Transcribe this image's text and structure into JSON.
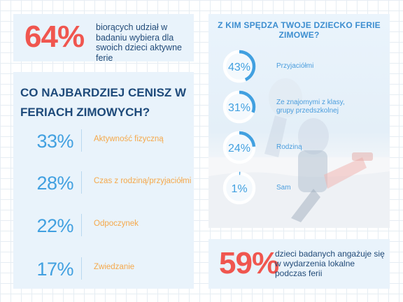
{
  "stat_top": {
    "value": "64%",
    "text": "biorących udział w badaniu wybiera dla swoich dzieci aktywne ferie"
  },
  "stat_bottom": {
    "value": "59%",
    "text": "dzieci badanych angażuje się w wydarzenia lokalne podczas ferii"
  },
  "colors": {
    "accent_red": "#f0564f",
    "accent_blue": "#41a0e0",
    "accent_orange": "#f5a84a",
    "navy": "#1e4a7a",
    "card": "#e9f3fb"
  },
  "chart_data": [
    {
      "type": "bar",
      "title": "CO NAJBARDZIEJ CENISZ W FERIACH ZIMOWYCH?",
      "categories": [
        "Aktywność fizyczną",
        "Czas z rodziną/przyjaciółmi",
        "Odpoczynek",
        "Zwiedzanie"
      ],
      "values": [
        33,
        28,
        22,
        17
      ],
      "value_labels": [
        "33%",
        "28%",
        "22%",
        "17%"
      ]
    },
    {
      "type": "pie",
      "title": "Z KIM SPĘDZA TWOJE DZIECKO FERIE ZIMOWE?",
      "categories": [
        "Przyjaciółmi",
        "Ze znajomymi z klasy, grupy przedszkolnej",
        "Rodziną",
        "Sam"
      ],
      "values": [
        43,
        31,
        24,
        1
      ],
      "value_labels": [
        "43%",
        "31%",
        "24%",
        "1%"
      ]
    }
  ]
}
